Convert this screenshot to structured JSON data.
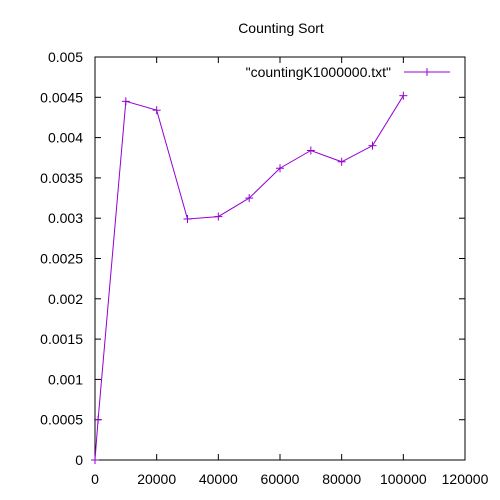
{
  "chart_data": {
    "type": "line",
    "title": "Counting Sort",
    "xlabel": "",
    "ylabel": "",
    "xlim": [
      0,
      120000
    ],
    "ylim": [
      0,
      0.005
    ],
    "x_ticks": [
      "0",
      "20000",
      "40000",
      "60000",
      "80000",
      "100000",
      "120000"
    ],
    "y_ticks": [
      "0",
      "0.0005",
      "0.001",
      "0.0015",
      "0.002",
      "0.0025",
      "0.003",
      "0.0035",
      "0.004",
      "0.0045",
      "0.005"
    ],
    "grid": false,
    "legend_position": "top-right",
    "series": [
      {
        "name": "\"countingK1000000.txt\"",
        "color": "#9400d3",
        "marker": "plus",
        "x": [
          0,
          1000,
          10000,
          20000,
          30000,
          40000,
          50000,
          60000,
          70000,
          80000,
          90000,
          100000
        ],
        "y": [
          0.0,
          0.0005,
          0.00445,
          0.00434,
          0.00299,
          0.00302,
          0.00325,
          0.00362,
          0.00384,
          0.0037,
          0.0039,
          0.00452
        ]
      }
    ]
  }
}
